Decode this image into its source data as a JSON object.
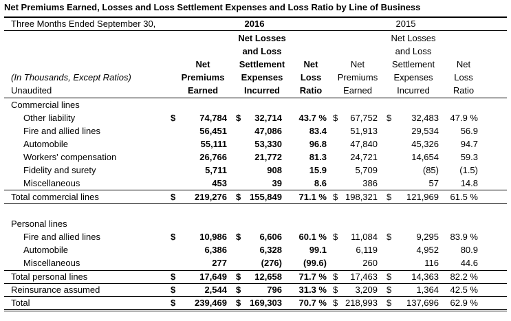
{
  "title": "Net Premiums Earned, Losses and Loss Settlement Expenses and Loss Ratio by Line of Business",
  "period": "Three Months Ended September 30,",
  "years": [
    "2016",
    "2015"
  ],
  "stub_lines": [
    "(In Thousands, Except Ratios)",
    "Unaudited"
  ],
  "headers_2016": {
    "premiums": [
      "Net",
      "Premiums",
      "Earned"
    ],
    "losses": [
      "Net Losses",
      "and Loss",
      "Settlement",
      "Expenses",
      "Incurred"
    ],
    "ratio": [
      "Net",
      "Loss",
      "Ratio"
    ]
  },
  "headers_2015": {
    "premiums": [
      "Net",
      "Premiums",
      "Earned"
    ],
    "losses": [
      "Net Losses",
      "and Loss",
      "Settlement",
      "Expenses",
      "Incurred"
    ],
    "ratio": [
      "Net",
      "Loss",
      "Ratio"
    ]
  },
  "commercial_header": "Commercial lines",
  "commercial_rows": [
    {
      "label": "Other liability",
      "d1": "$",
      "p16": "74,784",
      "d2": "$",
      "l16": "32,714",
      "r16": "43.7 %",
      "d3": "$",
      "p15": "67,752",
      "d4": "$",
      "l15": "32,483",
      "r15": "47.9 %"
    },
    {
      "label": "Fire and allied lines",
      "d1": "",
      "p16": "56,451",
      "d2": "",
      "l16": "47,086",
      "r16": "83.4",
      "d3": "",
      "p15": "51,913",
      "d4": "",
      "l15": "29,534",
      "r15": "56.9"
    },
    {
      "label": "Automobile",
      "d1": "",
      "p16": "55,111",
      "d2": "",
      "l16": "53,330",
      "r16": "96.8",
      "d3": "",
      "p15": "47,840",
      "d4": "",
      "l15": "45,326",
      "r15": "94.7"
    },
    {
      "label": "Workers' compensation",
      "d1": "",
      "p16": "26,766",
      "d2": "",
      "l16": "21,772",
      "r16": "81.3",
      "d3": "",
      "p15": "24,721",
      "d4": "",
      "l15": "14,654",
      "r15": "59.3"
    },
    {
      "label": "Fidelity and surety",
      "d1": "",
      "p16": "5,711",
      "d2": "",
      "l16": "908",
      "r16": "15.9",
      "d3": "",
      "p15": "5,709",
      "d4": "",
      "l15": "(85)",
      "r15": "(1.5)"
    },
    {
      "label": "Miscellaneous",
      "d1": "",
      "p16": "453",
      "d2": "",
      "l16": "39",
      "r16": "8.6",
      "d3": "",
      "p15": "386",
      "d4": "",
      "l15": "57",
      "r15": "14.8"
    }
  ],
  "commercial_total": {
    "label": "Total commercial lines",
    "d1": "$",
    "p16": "219,276",
    "d2": "$",
    "l16": "155,849",
    "r16": "71.1 %",
    "d3": "$",
    "p15": "198,321",
    "d4": "$",
    "l15": "121,969",
    "r15": "61.5 %"
  },
  "personal_header": "Personal lines",
  "personal_rows": [
    {
      "label": "Fire and allied lines",
      "d1": "$",
      "p16": "10,986",
      "d2": "$",
      "l16": "6,606",
      "r16": "60.1 %",
      "d3": "$",
      "p15": "11,084",
      "d4": "$",
      "l15": "9,295",
      "r15": "83.9 %"
    },
    {
      "label": "Automobile",
      "d1": "",
      "p16": "6,386",
      "d2": "",
      "l16": "6,328",
      "r16": "99.1",
      "d3": "",
      "p15": "6,119",
      "d4": "",
      "l15": "4,952",
      "r15": "80.9"
    },
    {
      "label": "Miscellaneous",
      "d1": "",
      "p16": "277",
      "d2": "",
      "l16": "(276)",
      "r16": "(99.6)",
      "d3": "",
      "p15": "260",
      "d4": "",
      "l15": "116",
      "r15": "44.6"
    }
  ],
  "personal_total": {
    "label": "Total personal lines",
    "d1": "$",
    "p16": "17,649",
    "d2": "$",
    "l16": "12,658",
    "r16": "71.7 %",
    "d3": "$",
    "p15": "17,463",
    "d4": "$",
    "l15": "14,363",
    "r15": "82.2 %"
  },
  "reinsurance": {
    "label": "Reinsurance assumed",
    "d1": "$",
    "p16": "2,544",
    "d2": "$",
    "l16": "796",
    "r16": "31.3 %",
    "d3": "$",
    "p15": "3,209",
    "d4": "$",
    "l15": "1,364",
    "r15": "42.5 %"
  },
  "grand_total": {
    "label": "Total",
    "d1": "$",
    "p16": "239,469",
    "d2": "$",
    "l16": "169,303",
    "r16": "70.7 %",
    "d3": "$",
    "p15": "218,993",
    "d4": "$",
    "l15": "137,696",
    "r15": "62.9 %"
  }
}
